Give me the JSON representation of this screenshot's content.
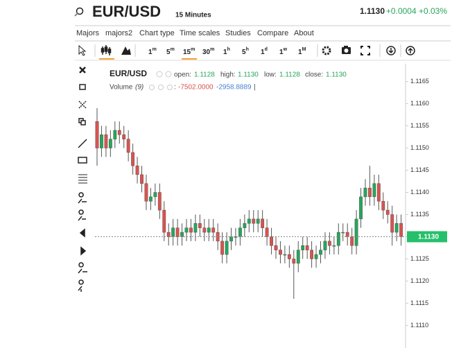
{
  "header": {
    "symbol": "EUR/USD",
    "interval": "15 Minutes",
    "price": "1.1130",
    "change": "+0.0004 +0.03%"
  },
  "menu": [
    "Majors",
    "majors2",
    "Chart type",
    "Time scales",
    "Studies",
    "Compare",
    "About"
  ],
  "timeframes": [
    {
      "n": "1",
      "u": "m"
    },
    {
      "n": "5",
      "u": "m"
    },
    {
      "n": "15",
      "u": "m"
    },
    {
      "n": "30",
      "u": "m"
    },
    {
      "n": "1",
      "u": "h"
    },
    {
      "n": "5",
      "u": "h"
    },
    {
      "n": "1",
      "u": "d"
    },
    {
      "n": "1",
      "u": "w"
    },
    {
      "n": "1",
      "u": "M"
    }
  ],
  "legend": {
    "symbol": "EUR/USD",
    "open_label": "open:",
    "open": "1.1128",
    "high_label": "high:",
    "high": "1.1130",
    "low_label": "low:",
    "low": "1.1128",
    "close_label": "close:",
    "close": "1.1130",
    "volume_label": "Volume",
    "volume_period": "(9)",
    "volume_sep": ":",
    "volume_1": "-7502.0000",
    "volume_2": "-2958.8889",
    "cursor": "|"
  },
  "chart_data": {
    "type": "candlestick",
    "up_color": "#26a65b",
    "down_color": "#d9534f",
    "ylim": [
      1.1106,
      1.1169
    ],
    "yticks": [
      1.1165,
      {
        "value": 1.116,
        "label": "1.1160"
      },
      1.1155,
      {
        "value": 1.115,
        "label": "1.1150"
      },
      1.1145,
      {
        "value": 1.114,
        "label": "1.1140"
      },
      1.1135,
      {
        "value": 1.113,
        "label": "1.1130"
      },
      1.1125,
      {
        "value": 1.112,
        "label": "1.1120"
      },
      1.1115,
      {
        "value": 1.111,
        "label": "1.1110"
      }
    ],
    "last_price": {
      "value": 1.113,
      "label": "1.1130"
    },
    "candles": [
      [
        1.1156,
        1.1159,
        1.1146,
        1.115
      ],
      [
        1.115,
        1.1155,
        1.1148,
        1.1153
      ],
      [
        1.1153,
        1.1155,
        1.1148,
        1.115
      ],
      [
        1.115,
        1.1154,
        1.1148,
        1.1152
      ],
      [
        1.1152,
        1.1156,
        1.115,
        1.1154
      ],
      [
        1.1154,
        1.1156,
        1.1151,
        1.1153
      ],
      [
        1.1153,
        1.1155,
        1.115,
        1.1152
      ],
      [
        1.1152,
        1.1154,
        1.1147,
        1.1149
      ],
      [
        1.1149,
        1.1151,
        1.1144,
        1.1146
      ],
      [
        1.1146,
        1.1148,
        1.1142,
        1.1144
      ],
      [
        1.1144,
        1.1146,
        1.114,
        1.1142
      ],
      [
        1.1142,
        1.1144,
        1.1136,
        1.1138
      ],
      [
        1.1138,
        1.1141,
        1.1136,
        1.1139
      ],
      [
        1.1139,
        1.1142,
        1.1137,
        1.114
      ],
      [
        1.114,
        1.1142,
        1.1134,
        1.1136
      ],
      [
        1.1136,
        1.1138,
        1.1129,
        1.1131
      ],
      [
        1.1131,
        1.1133,
        1.1128,
        1.113
      ],
      [
        1.113,
        1.1134,
        1.1128,
        1.1132
      ],
      [
        1.1132,
        1.1134,
        1.1128,
        1.113
      ],
      [
        1.113,
        1.1133,
        1.1128,
        1.1131
      ],
      [
        1.1131,
        1.1134,
        1.1129,
        1.1132
      ],
      [
        1.1132,
        1.1134,
        1.1129,
        1.1131
      ],
      [
        1.1131,
        1.1135,
        1.1129,
        1.1133
      ],
      [
        1.1133,
        1.1135,
        1.113,
        1.1132
      ],
      [
        1.1132,
        1.1134,
        1.1129,
        1.1131
      ],
      [
        1.1131,
        1.1134,
        1.1129,
        1.1132
      ],
      [
        1.1132,
        1.1134,
        1.1129,
        1.1131
      ],
      [
        1.1131,
        1.1133,
        1.1127,
        1.1129
      ],
      [
        1.1129,
        1.1131,
        1.1124,
        1.1126
      ],
      [
        1.1126,
        1.1131,
        1.1124,
        1.1129
      ],
      [
        1.1129,
        1.1132,
        1.1127,
        1.113
      ],
      [
        1.113,
        1.1132,
        1.1128,
        1.113
      ],
      [
        1.113,
        1.1134,
        1.1128,
        1.1132
      ],
      [
        1.1132,
        1.1135,
        1.113,
        1.1133
      ],
      [
        1.1133,
        1.1136,
        1.1131,
        1.1134
      ],
      [
        1.1134,
        1.1136,
        1.1131,
        1.1133
      ],
      [
        1.1133,
        1.1136,
        1.1131,
        1.1134
      ],
      [
        1.1134,
        1.1136,
        1.113,
        1.1132
      ],
      [
        1.1132,
        1.1134,
        1.1128,
        1.113
      ],
      [
        1.113,
        1.1132,
        1.1126,
        1.1128
      ],
      [
        1.1128,
        1.113,
        1.1125,
        1.1127
      ],
      [
        1.1127,
        1.1129,
        1.1124,
        1.1126
      ],
      [
        1.1126,
        1.1128,
        1.1124,
        1.1126
      ],
      [
        1.1126,
        1.1128,
        1.1123,
        1.1125
      ],
      [
        1.1125,
        1.1127,
        1.1116,
        1.1124
      ],
      [
        1.1124,
        1.1129,
        1.1122,
        1.1127
      ],
      [
        1.1127,
        1.113,
        1.1125,
        1.1128
      ],
      [
        1.1128,
        1.113,
        1.1125,
        1.1127
      ],
      [
        1.1127,
        1.1129,
        1.1123,
        1.1125
      ],
      [
        1.1125,
        1.1128,
        1.1123,
        1.1126
      ],
      [
        1.1126,
        1.1129,
        1.1124,
        1.1127
      ],
      [
        1.1127,
        1.1131,
        1.1125,
        1.1129
      ],
      [
        1.1129,
        1.1131,
        1.1126,
        1.1128
      ],
      [
        1.1128,
        1.113,
        1.1126,
        1.1128
      ],
      [
        1.1128,
        1.1133,
        1.1126,
        1.1131
      ],
      [
        1.1131,
        1.1133,
        1.1129,
        1.1131
      ],
      [
        1.1131,
        1.1133,
        1.1128,
        1.113
      ],
      [
        1.113,
        1.1132,
        1.1126,
        1.1128
      ],
      [
        1.1128,
        1.1136,
        1.1126,
        1.1134
      ],
      [
        1.1134,
        1.1141,
        1.1132,
        1.1139
      ],
      [
        1.1139,
        1.1143,
        1.1137,
        1.1141
      ],
      [
        1.1141,
        1.1146,
        1.1137,
        1.1139
      ],
      [
        1.1139,
        1.1144,
        1.1137,
        1.1142
      ],
      [
        1.1142,
        1.1144,
        1.1136,
        1.1138
      ],
      [
        1.1138,
        1.114,
        1.1134,
        1.1136
      ],
      [
        1.1136,
        1.1138,
        1.1133,
        1.1135
      ],
      [
        1.1135,
        1.1137,
        1.1128,
        1.1131
      ],
      [
        1.1131,
        1.1135,
        1.1129,
        1.1133
      ],
      [
        1.1133,
        1.1135,
        1.1128,
        1.113
      ]
    ]
  }
}
